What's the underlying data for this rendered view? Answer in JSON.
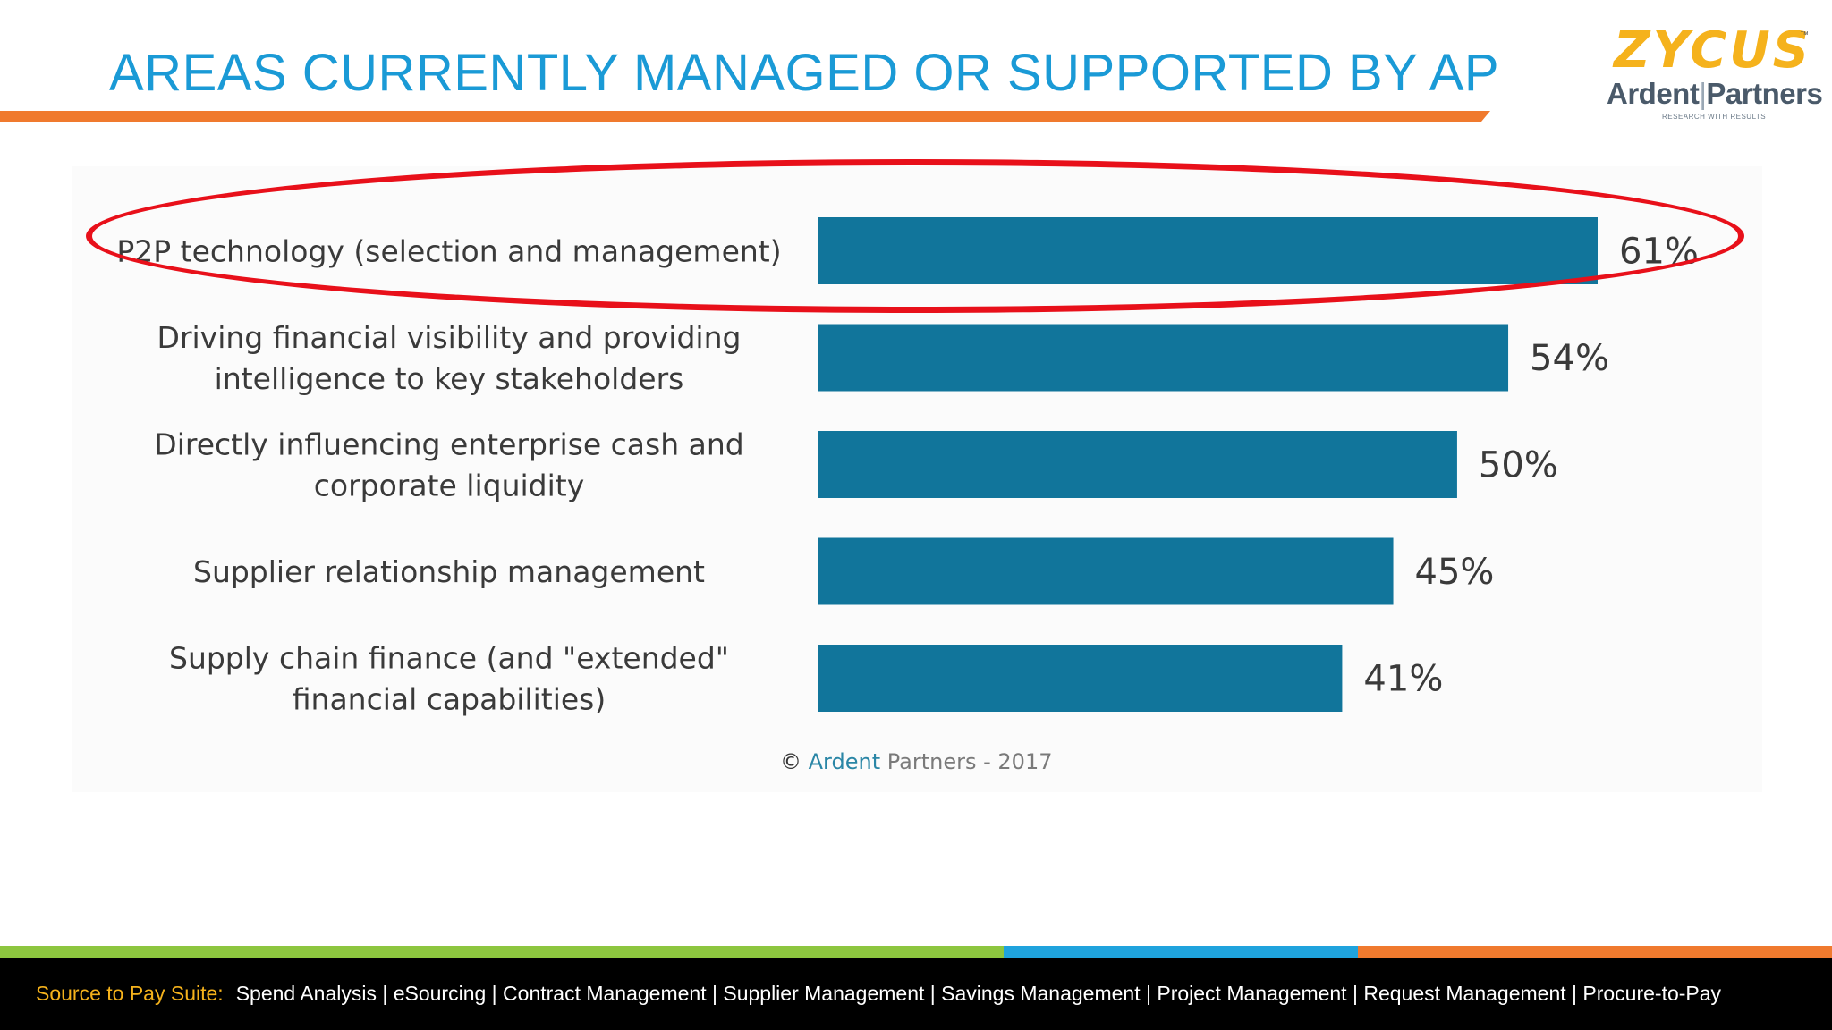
{
  "header": {
    "title": "AREAS CURRENTLY MANAGED OR SUPPORTED BY AP",
    "logo_primary": "ZYCUS",
    "logo_tm": "™",
    "logo_secondary_left": "Ardent",
    "logo_secondary_sep": "|",
    "logo_secondary_right": "Partners",
    "logo_tagline": "RESEARCH WITH RESULTS"
  },
  "chart_data": {
    "type": "bar",
    "orientation": "horizontal",
    "title": "",
    "categories": [
      "P2P technology (selection and management)",
      "Driving financial visibility and providing intelligence to key stakeholders",
      "Directly influencing enterprise cash and corporate liquidity",
      "Supplier relationship management",
      "Supply chain finance (and \"extended\" financial capabilities)"
    ],
    "label_lines": [
      [
        "P2P technology (selection and management)"
      ],
      [
        "Driving financial visibility and providing",
        "intelligence to key stakeholders"
      ],
      [
        "Directly influencing enterprise cash and",
        "corporate liquidity"
      ],
      [
        "Supplier relationship management"
      ],
      [
        "Supply chain finance (and \"extended\"",
        "financial capabilities)"
      ]
    ],
    "values": [
      61,
      54,
      50,
      45,
      41
    ],
    "value_labels": [
      "61%",
      "54%",
      "50%",
      "45%",
      "41%"
    ],
    "unit": "%",
    "xlim": [
      0,
      100
    ],
    "bar_color": "#11759b",
    "highlighted_category_index": 0,
    "highlight_color": "#e8101a",
    "grid": false
  },
  "credit": {
    "symbol": "©",
    "brand": "Ardent",
    "rest": " Partners - 2017"
  },
  "footer": {
    "label": "Source to Pay Suite:",
    "items": "Spend Analysis | eSourcing | Contract Management | Supplier Management | Savings Management | Project Management | Request Management | Procure-to-Pay"
  }
}
